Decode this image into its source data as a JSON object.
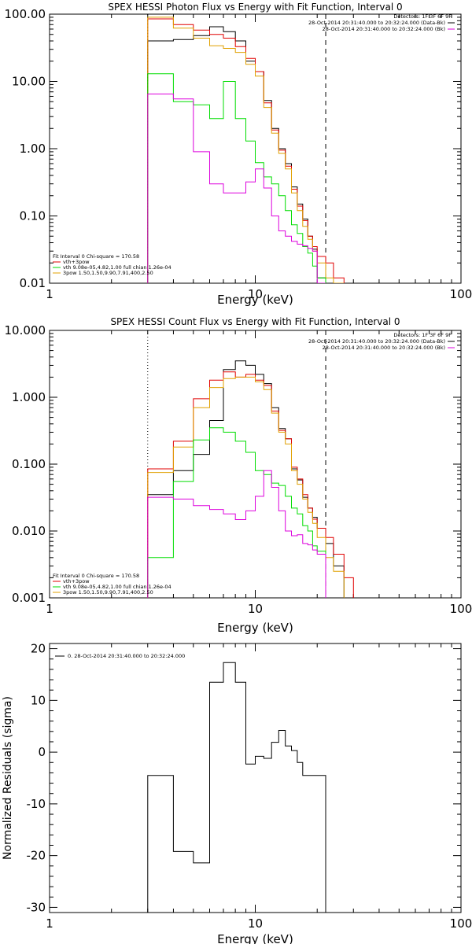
{
  "colors": {
    "black": "#000000",
    "red": "#e00000",
    "green": "#00dd00",
    "magenta": "#dd00dd",
    "orange": "#e0a000"
  },
  "chart_data": [
    {
      "type": "line",
      "title": "SPEX HESSI Photon Flux vs Energy with Fit Function, Interval 0",
      "xlabel": "Energy (keV)",
      "ylabel": "",
      "xscale": "log",
      "yscale": "log",
      "xlim": [
        1,
        100
      ],
      "ylim": [
        0.01,
        100
      ],
      "xticks": [
        {
          "v": 1,
          "label": "1"
        },
        {
          "v": 10,
          "label": "10"
        },
        {
          "v": 100,
          "label": "100"
        }
      ],
      "yticks": [
        {
          "v": 0.01,
          "label": "0.01"
        },
        {
          "v": 0.1,
          "label": "0.10"
        },
        {
          "v": 1,
          "label": "1.00"
        },
        {
          "v": 10,
          "label": "10.00"
        },
        {
          "v": 100,
          "label": "100.00"
        }
      ],
      "vlines": [
        {
          "x": 3,
          "style": "dotted"
        },
        {
          "x": 22,
          "style": "dashed"
        }
      ],
      "legend_top": {
        "header": "Detectors: 1F 3F 6F 9F",
        "entries": [
          {
            "text": "28-Oct-2014 20:31:40.000 to 20:32:24.000 (Data-Bk)",
            "color": "#000000"
          },
          {
            "text": "28-Oct-2014 20:31:40.000 to 20:32:24.000 (Bk)",
            "color": "#dd00dd"
          }
        ]
      },
      "legend_bottom": {
        "header": "Fit Interval 0   Chi-square = 170.58",
        "entries": [
          {
            "text": "vth+3pow",
            "color": "#e00000"
          },
          {
            "text": "vth 9.08e-05,4.82,1.00  full chian 1.26e-04",
            "color": "#00dd00"
          },
          {
            "text": "3pow 1.50,1.50,9.90,7.91,400,2.50",
            "color": "#e0a000"
          }
        ]
      },
      "series": [
        {
          "color": "#000000",
          "edges": [
            3,
            4,
            5,
            6,
            7,
            8,
            9,
            10,
            11,
            12,
            13,
            14,
            15,
            16,
            17,
            18,
            19,
            20,
            22
          ],
          "values": [
            40,
            42,
            48,
            65,
            55,
            40,
            20,
            14,
            5.2,
            2.0,
            1.0,
            0.6,
            0.27,
            0.15,
            0.09,
            0.05,
            0.032,
            0.012
          ]
        },
        {
          "color": "#e00000",
          "edges": [
            3,
            4,
            5,
            6,
            7,
            8,
            9,
            10,
            11,
            12,
            13,
            14,
            15,
            16,
            17,
            18,
            19,
            20,
            22,
            24,
            27
          ],
          "values": [
            85,
            70,
            58,
            50,
            44,
            33,
            22,
            14,
            4.8,
            1.9,
            0.95,
            0.55,
            0.25,
            0.14,
            0.085,
            0.05,
            0.035,
            0.025,
            0.02,
            0.012
          ]
        },
        {
          "color": "#e0a000",
          "edges": [
            3,
            4,
            5,
            6,
            7,
            8,
            9,
            10,
            11,
            12,
            13,
            14,
            15,
            16,
            17,
            18,
            19,
            20,
            22,
            24,
            27
          ],
          "values": [
            90,
            62,
            44,
            34,
            31,
            27,
            18,
            12,
            4.1,
            1.7,
            0.85,
            0.5,
            0.22,
            0.12,
            0.07,
            0.045,
            0.03,
            0.02,
            0.012,
            0.008
          ]
        },
        {
          "color": "#00dd00",
          "edges": [
            3,
            4,
            5,
            6,
            7,
            8,
            9,
            10,
            11,
            12,
            13,
            14,
            15,
            16,
            17,
            18,
            19,
            20,
            22
          ],
          "values": [
            13,
            5.0,
            4.5,
            2.8,
            10,
            2.8,
            1.3,
            0.62,
            0.38,
            0.3,
            0.2,
            0.12,
            0.074,
            0.055,
            0.035,
            0.028,
            0.018,
            0.012
          ]
        },
        {
          "color": "#dd00dd",
          "edges": [
            3,
            4,
            5,
            6,
            7,
            8,
            9,
            10,
            11,
            12,
            13,
            14,
            15,
            16,
            17,
            18,
            19,
            20,
            22
          ],
          "values": [
            6.5,
            5.5,
            0.9,
            0.3,
            0.22,
            0.22,
            0.32,
            0.5,
            0.26,
            0.1,
            0.06,
            0.05,
            0.042,
            0.038,
            0.036,
            0.033,
            0.03,
            0.006
          ]
        }
      ]
    },
    {
      "type": "line",
      "title": "SPEX HESSI Count Flux vs Energy with Fit Function, Interval 0",
      "xlabel": "Energy (keV)",
      "ylabel": "",
      "xscale": "log",
      "yscale": "log",
      "xlim": [
        1,
        100
      ],
      "ylim": [
        0.001,
        10
      ],
      "xticks": [
        {
          "v": 1,
          "label": "1"
        },
        {
          "v": 10,
          "label": "10"
        },
        {
          "v": 100,
          "label": "100"
        }
      ],
      "yticks": [
        {
          "v": 0.001,
          "label": "0.001"
        },
        {
          "v": 0.01,
          "label": "0.010"
        },
        {
          "v": 0.1,
          "label": "0.100"
        },
        {
          "v": 1,
          "label": "1.000"
        },
        {
          "v": 10,
          "label": "10.000"
        }
      ],
      "vlines": [
        {
          "x": 3,
          "style": "dotted"
        },
        {
          "x": 22,
          "style": "dashed"
        }
      ],
      "legend_top": {
        "header": "Detectors: 1F 3F 6F 9F",
        "entries": [
          {
            "text": "28-Oct-2014 20:31:40.000 to 20:32:24.000 (Data-Bk)",
            "color": "#000000"
          },
          {
            "text": "28-Oct-2014 20:31:40.000 to 20:32:24.000 (Bk)",
            "color": "#dd00dd"
          }
        ]
      },
      "legend_bottom": {
        "header": "Fit Interval 0   Chi-square = 170.58",
        "entries": [
          {
            "text": "vth+3pow",
            "color": "#e00000"
          },
          {
            "text": "vth 9.08e-05,4.82,1.00  full chian 1.26e-04",
            "color": "#00dd00"
          },
          {
            "text": "3pow 1.50,1.50,9.90,7.91,400,2.50",
            "color": "#e0a000"
          }
        ]
      },
      "series": [
        {
          "color": "#000000",
          "edges": [
            3,
            4,
            5,
            6,
            7,
            8,
            9,
            10,
            11,
            12,
            13,
            14,
            15,
            16,
            17,
            18,
            19,
            20,
            22,
            24,
            27
          ],
          "values": [
            0.035,
            0.08,
            0.14,
            0.45,
            2.6,
            3.5,
            3.0,
            2.2,
            1.6,
            0.7,
            0.34,
            0.24,
            0.085,
            0.058,
            0.032,
            0.022,
            0.016,
            0.011,
            0.0065,
            0.003
          ]
        },
        {
          "color": "#e00000",
          "edges": [
            3,
            4,
            5,
            6,
            7,
            8,
            9,
            10,
            11,
            12,
            13,
            14,
            15,
            16,
            17,
            18,
            19,
            20,
            22,
            24,
            27,
            30
          ],
          "values": [
            0.085,
            0.22,
            0.95,
            1.8,
            2.4,
            2.0,
            2.2,
            1.8,
            1.5,
            0.62,
            0.32,
            0.24,
            0.09,
            0.06,
            0.035,
            0.022,
            0.015,
            0.011,
            0.008,
            0.0045,
            0.002
          ]
        },
        {
          "color": "#e0a000",
          "edges": [
            3,
            4,
            5,
            6,
            7,
            8,
            9,
            10,
            11,
            12,
            13,
            14,
            15,
            16,
            17,
            18,
            19,
            20,
            22,
            24,
            27
          ],
          "values": [
            0.075,
            0.18,
            0.7,
            1.4,
            1.9,
            2.0,
            2.0,
            1.7,
            1.3,
            0.58,
            0.3,
            0.2,
            0.08,
            0.05,
            0.03,
            0.019,
            0.013,
            0.008,
            0.004,
            0.0025
          ]
        },
        {
          "color": "#00dd00",
          "edges": [
            3,
            4,
            5,
            6,
            7,
            8,
            9,
            10,
            11,
            12,
            13,
            14,
            15,
            16,
            17,
            18,
            19,
            20,
            22
          ],
          "values": [
            0.004,
            0.055,
            0.23,
            0.35,
            0.3,
            0.22,
            0.15,
            0.08,
            0.07,
            0.052,
            0.048,
            0.033,
            0.022,
            0.018,
            0.012,
            0.01,
            0.006,
            0.005
          ]
        },
        {
          "color": "#dd00dd",
          "edges": [
            3,
            4,
            5,
            6,
            7,
            8,
            9,
            10,
            11,
            12,
            13,
            14,
            15,
            16,
            17,
            18,
            19,
            20,
            22
          ],
          "values": [
            0.032,
            0.03,
            0.024,
            0.021,
            0.018,
            0.0148,
            0.02,
            0.033,
            0.08,
            0.045,
            0.02,
            0.01,
            0.0085,
            0.0088,
            0.0065,
            0.0062,
            0.0052,
            0.0045
          ]
        }
      ]
    },
    {
      "type": "line",
      "title": "",
      "xlabel": "Energy (keV)",
      "ylabel": "Normalized Residuals (sigma)",
      "xscale": "log",
      "yscale": "linear",
      "xlim": [
        1,
        100
      ],
      "ylim": [
        -31,
        21
      ],
      "xticks": [
        {
          "v": 1,
          "label": "1"
        },
        {
          "v": 10,
          "label": "10"
        },
        {
          "v": 100,
          "label": "100"
        }
      ],
      "yticks": [
        {
          "v": -30,
          "label": "-30"
        },
        {
          "v": -20,
          "label": "-20"
        },
        {
          "v": -10,
          "label": "-10"
        },
        {
          "v": 0,
          "label": "0"
        },
        {
          "v": 10,
          "label": "10"
        },
        {
          "v": 20,
          "label": "20"
        }
      ],
      "legend_top": {
        "header": "",
        "entries": [
          {
            "text": "0. 28-Oct-2014 20:31:40.000 to 20:32:24.000",
            "color": "#000000"
          }
        ]
      },
      "series": [
        {
          "color": "#000000",
          "edges": [
            3,
            4,
            5,
            6,
            7,
            8,
            9,
            10,
            11,
            12,
            13,
            14,
            15,
            16,
            17,
            18,
            19,
            20,
            22
          ],
          "values": [
            -4.5,
            -19.2,
            -21.4,
            13.5,
            17.3,
            13.5,
            -2.3,
            -0.8,
            -1.2,
            1.9,
            4.2,
            1.2,
            0.3,
            -2.0,
            -4.5,
            -4.5,
            -4.5,
            -4.5
          ]
        }
      ]
    }
  ]
}
